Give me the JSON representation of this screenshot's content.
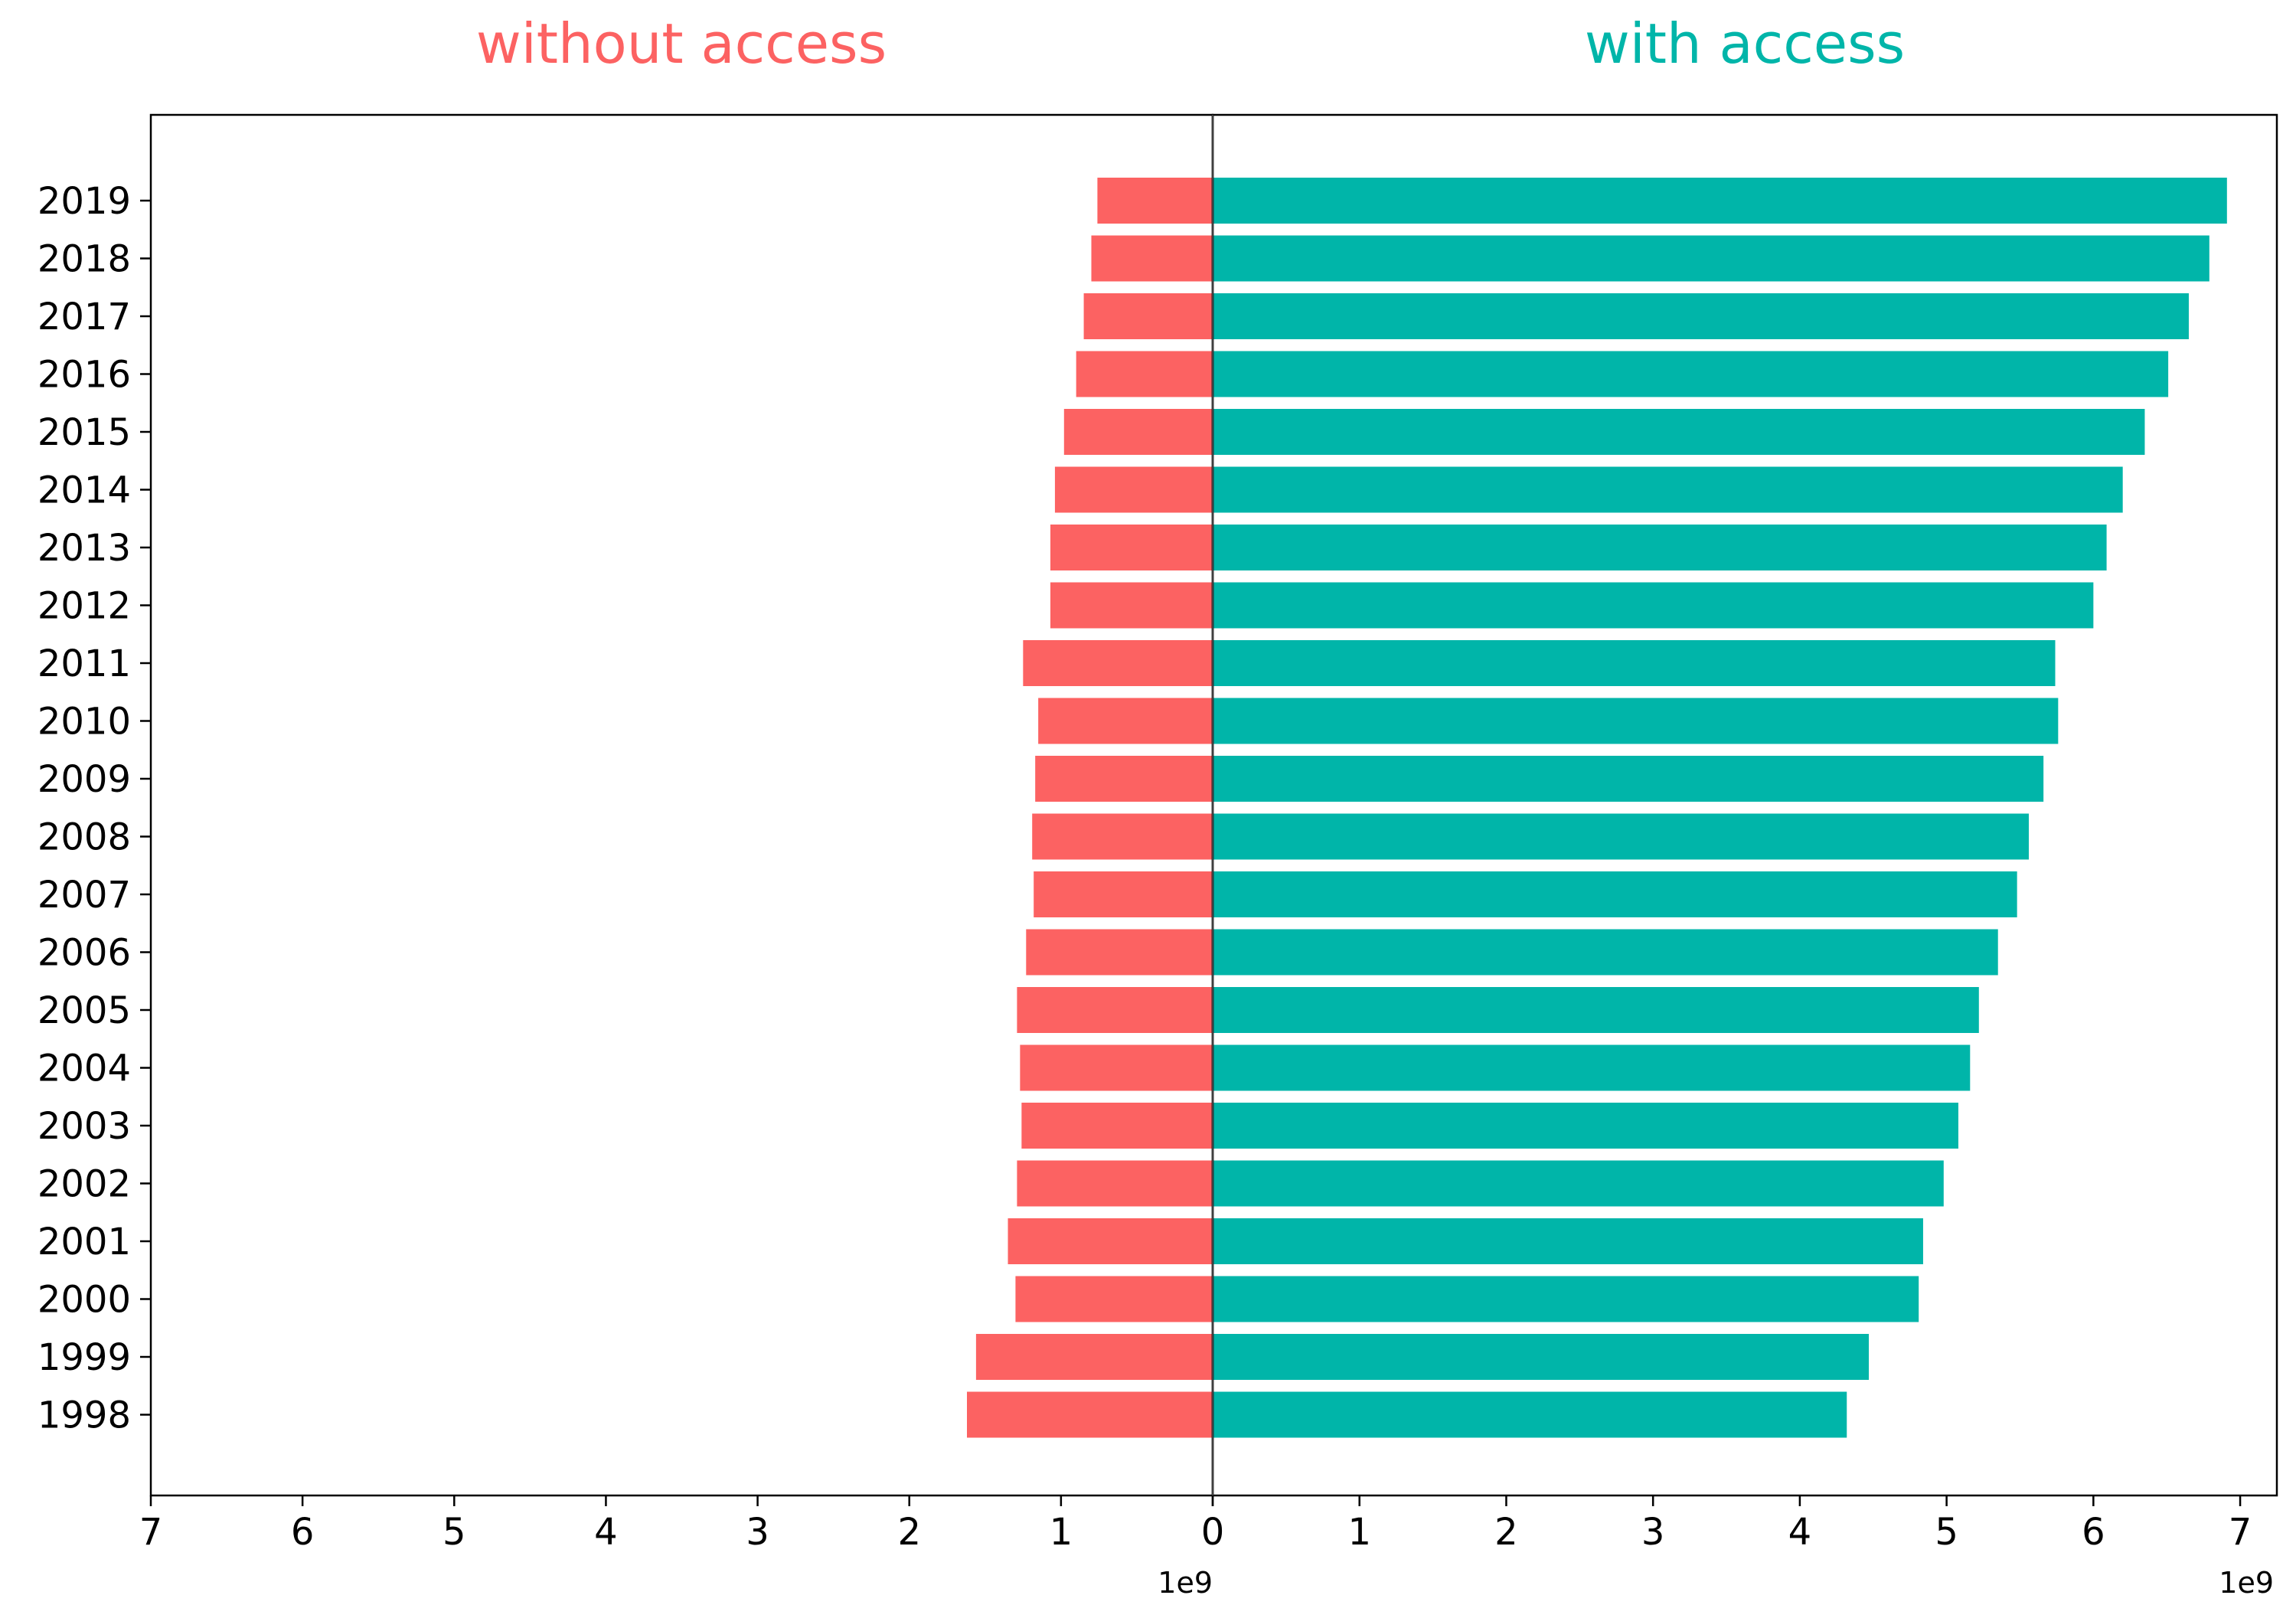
{
  "chart_data": [
    {
      "type": "bar",
      "orientation": "horizontal",
      "direction": "reversed",
      "title": "without access",
      "title_color": "#FC6262",
      "bar_color": "#FC6262",
      "categories": [
        "2019",
        "2018",
        "2017",
        "2016",
        "2015",
        "2014",
        "2013",
        "2012",
        "2011",
        "2010",
        "2009",
        "2008",
        "2007",
        "2006",
        "2005",
        "2004",
        "2003",
        "2002",
        "2001",
        "2000",
        "1999",
        "1998"
      ],
      "values": [
        760000000.0,
        800000000.0,
        850000000.0,
        900000000.0,
        980000000.0,
        1040000000.0,
        1070000000.0,
        1070000000.0,
        1250000000.0,
        1150000000.0,
        1170000000.0,
        1190000000.0,
        1180000000.0,
        1230000000.0,
        1290000000.0,
        1270000000.0,
        1260000000.0,
        1290000000.0,
        1350000000.0,
        1300000000.0,
        1560000000.0,
        1620000000.0
      ],
      "xlim": [
        7000000000.0,
        0
      ],
      "xticks": [
        "7",
        "6",
        "5",
        "4",
        "3",
        "2",
        "1",
        "0"
      ],
      "offset_text": "1e9"
    },
    {
      "type": "bar",
      "orientation": "horizontal",
      "title": "with access",
      "title_color": "#00B5A9",
      "bar_color": "#00B5A9",
      "categories": [
        "2019",
        "2018",
        "2017",
        "2016",
        "2015",
        "2014",
        "2013",
        "2012",
        "2011",
        "2010",
        "2009",
        "2008",
        "2007",
        "2006",
        "2005",
        "2004",
        "2003",
        "2002",
        "2001",
        "2000",
        "1999",
        "1998"
      ],
      "values": [
        6910000000.0,
        6790000000.0,
        6650000000.0,
        6510000000.0,
        6350000000.0,
        6200000000.0,
        6090000000.0,
        6000000000.0,
        5740000000.0,
        5760000000.0,
        5660000000.0,
        5560000000.0,
        5480000000.0,
        5350000000.0,
        5220000000.0,
        5160000000.0,
        5080000000.0,
        4980000000.0,
        4840000000.0,
        4810000000.0,
        4470000000.0,
        4320000000.0
      ],
      "xlim": [
        0,
        7250000000.0
      ],
      "xticks": [
        "0",
        "1",
        "2",
        "3",
        "4",
        "5",
        "6",
        "7"
      ],
      "offset_text": "1e9"
    }
  ]
}
